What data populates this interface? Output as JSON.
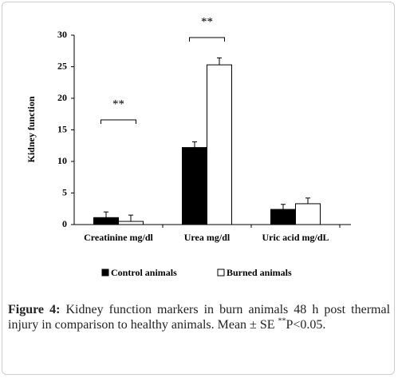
{
  "chart_data": {
    "type": "bar",
    "y_label": "Kidney function",
    "categories": [
      "Creatinine mg/dl",
      "Urea mg/dl",
      "Uric acid mg/dL"
    ],
    "series": [
      {
        "name": "Control animals",
        "color": "#000000",
        "values": [
          1.1,
          12.2,
          2.4
        ],
        "errors": [
          0.9,
          0.9,
          0.8
        ]
      },
      {
        "name": "Burned animals",
        "color": "#ffffff",
        "values": [
          0.5,
          25.3,
          3.3
        ],
        "errors": [
          1.0,
          1.1,
          0.9
        ]
      }
    ],
    "annotations": [
      {
        "text": "**",
        "category": 0
      },
      {
        "text": "**",
        "category": 1
      }
    ],
    "ylim": [
      0,
      30
    ],
    "yticks": [
      0,
      5,
      10,
      15,
      20,
      25,
      30
    ]
  },
  "caption": {
    "label": "Figure 4:",
    "text": "Kidney function markers in burn animals 48 h post thermal injury in comparison to healthy animals. Mean ± SE",
    "sup": "**",
    "tail": "P<0.05."
  }
}
